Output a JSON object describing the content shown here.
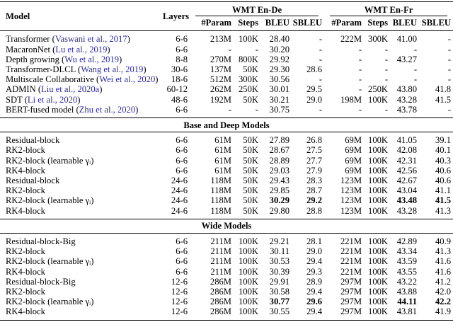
{
  "table": {
    "citation_color": "#2b2ba0",
    "columns": {
      "model": "Model",
      "layers": "Layers"
    },
    "groups": [
      {
        "label": "WMT En-De",
        "subcols": [
          "#Param",
          "Steps",
          "BLEU",
          "SBLEU"
        ]
      },
      {
        "label": "WMT En-Fr",
        "subcols": [
          "#Param",
          "Steps",
          "BLEU",
          "SBLEU"
        ]
      }
    ],
    "sections": [
      {
        "title": "",
        "rows": [
          {
            "name": "Transformer",
            "cite": "Vaswani et al., 2017",
            "layers": "6-6",
            "ende": [
              "213M",
              "100K",
              "28.40",
              "-"
            ],
            "enfr": [
              "222M",
              "300K",
              "41.00",
              "-"
            ]
          },
          {
            "name": "MacaronNet",
            "cite": "Lu et al., 2019",
            "layers": "6-6",
            "ende": [
              "-",
              "-",
              "30.20",
              "-"
            ],
            "enfr": [
              "-",
              "-",
              "-",
              "-"
            ]
          },
          {
            "name": "Depth growing",
            "cite": "Wu et al., 2019",
            "layers": "8-8",
            "ende": [
              "270M",
              "800K",
              "29.92",
              "-"
            ],
            "enfr": [
              "-",
              "-",
              "43.27",
              "-"
            ]
          },
          {
            "name": "Transformer-DLCL",
            "cite": "Wang et al., 2019",
            "layers": "30-6",
            "ende": [
              "137M",
              "50K",
              "29.30",
              "28.6"
            ],
            "enfr": [
              "-",
              "-",
              "-",
              "-"
            ]
          },
          {
            "name": "Multiscale Collaborative",
            "cite": "Wei et al., 2020",
            "layers": "18-6",
            "ende": [
              "512M",
              "300K",
              "30.56",
              "-"
            ],
            "enfr": [
              "-",
              "-",
              "-",
              "-"
            ]
          },
          {
            "name": "ADMIN",
            "cite": "Liu et al., 2020a",
            "layers": "60-12",
            "ende": [
              "262M",
              "250K",
              "30.01",
              "29.5"
            ],
            "enfr": [
              "-",
              "250K",
              "43.80",
              "41.8"
            ]
          },
          {
            "name": "SDT",
            "cite": "Li et al., 2020",
            "layers": "48-6",
            "ende": [
              "192M",
              "50K",
              "30.21",
              "29.0"
            ],
            "enfr": [
              "198M",
              "100K",
              "43.28",
              "41.5"
            ]
          },
          {
            "name": "BERT-fused model",
            "cite": "Zhu et al., 2020",
            "layers": "6-6",
            "ende": [
              "-",
              "-",
              "30.75",
              "-"
            ],
            "enfr": [
              "-",
              "-",
              "43.78",
              "-"
            ]
          }
        ]
      },
      {
        "title": "Base and Deep Models",
        "rows": [
          {
            "name": "Residual-block",
            "cite": null,
            "layers": "6-6",
            "ende": [
              "61M",
              "50K",
              "27.89",
              "26.8"
            ],
            "enfr": [
              "69M",
              "100K",
              "41.05",
              "39.1"
            ]
          },
          {
            "name": "RK2-block",
            "cite": null,
            "layers": "6-6",
            "ende": [
              "61M",
              "50K",
              "28.67",
              "27.5"
            ],
            "enfr": [
              "69M",
              "100K",
              "42.08",
              "40.1"
            ]
          },
          {
            "name": "RK2-block (learnable γᵢ)",
            "cite": null,
            "layers": "6-6",
            "ende": [
              "61M",
              "50K",
              "28.89",
              "27.7"
            ],
            "enfr": [
              "69M",
              "100K",
              "42.31",
              "40.3"
            ]
          },
          {
            "name": "RK4-block",
            "cite": null,
            "layers": "6-6",
            "ende": [
              "61M",
              "50K",
              "29.03",
              "27.9"
            ],
            "enfr": [
              "69M",
              "100K",
              "42.56",
              "40.6"
            ]
          },
          {
            "name": "Residual-block",
            "cite": null,
            "layers": "24-6",
            "ende": [
              "118M",
              "50K",
              "29.43",
              "28.3"
            ],
            "enfr": [
              "123M",
              "100K",
              "42.67",
              "40.6"
            ]
          },
          {
            "name": "RK2-block",
            "cite": null,
            "layers": "24-6",
            "ende": [
              "118M",
              "50K",
              "29.85",
              "28.7"
            ],
            "enfr": [
              "123M",
              "100K",
              "43.04",
              "41.1"
            ]
          },
          {
            "name": "RK2-block (learnable γᵢ)",
            "cite": null,
            "layers": "24-6",
            "ende": [
              "118M",
              "50K",
              "30.29",
              "29.2"
            ],
            "enfr": [
              "123M",
              "100K",
              "43.48",
              "41.5"
            ],
            "bold_cols": [
              2,
              3
            ]
          },
          {
            "name": "RK4-block",
            "cite": null,
            "layers": "24-6",
            "ende": [
              "118M",
              "50K",
              "29.80",
              "28.8"
            ],
            "enfr": [
              "123M",
              "100K",
              "43.28",
              "41.3"
            ]
          }
        ]
      },
      {
        "title": "Wide Models",
        "rows": [
          {
            "name": "Residual-block-Big",
            "cite": null,
            "layers": "6-6",
            "ende": [
              "211M",
              "100K",
              "29.21",
              "28.1"
            ],
            "enfr": [
              "221M",
              "100K",
              "42.89",
              "40.9"
            ]
          },
          {
            "name": "RK2-block",
            "cite": null,
            "layers": "6-6",
            "ende": [
              "211M",
              "100K",
              "30.11",
              "29.0"
            ],
            "enfr": [
              "221M",
              "100K",
              "43.34",
              "41.3"
            ]
          },
          {
            "name": "RK2-block (learnable γᵢ)",
            "cite": null,
            "layers": "6-6",
            "ende": [
              "211M",
              "100K",
              "30.53",
              "29.4"
            ],
            "enfr": [
              "221M",
              "100K",
              "43.59",
              "41.6"
            ]
          },
          {
            "name": "RK4-block",
            "cite": null,
            "layers": "6-6",
            "ende": [
              "211M",
              "100K",
              "30.39",
              "29.3"
            ],
            "enfr": [
              "221M",
              "100K",
              "43.55",
              "41.6"
            ]
          },
          {
            "name": "Residual-block-Big",
            "cite": null,
            "layers": "12-6",
            "ende": [
              "286M",
              "100K",
              "29.91",
              "28.9"
            ],
            "enfr": [
              "297M",
              "100K",
              "43.22",
              "41.2"
            ]
          },
          {
            "name": "RK2-block",
            "cite": null,
            "layers": "12-6",
            "ende": [
              "286M",
              "100K",
              "30.58",
              "29.4"
            ],
            "enfr": [
              "297M",
              "100K",
              "43.88",
              "42.0"
            ]
          },
          {
            "name": "RK2-block (learnable γᵢ)",
            "cite": null,
            "layers": "12-6",
            "ende": [
              "286M",
              "100K",
              "30.77",
              "29.6"
            ],
            "enfr": [
              "297M",
              "100K",
              "44.11",
              "42.2"
            ],
            "bold_cols": [
              2,
              3
            ]
          },
          {
            "name": "RK4-block",
            "cite": null,
            "layers": "12-6",
            "ende": [
              "286M",
              "100K",
              "30.55",
              "29.4"
            ],
            "enfr": [
              "297M",
              "100K",
              "43.81",
              "41.9"
            ]
          }
        ]
      }
    ]
  }
}
